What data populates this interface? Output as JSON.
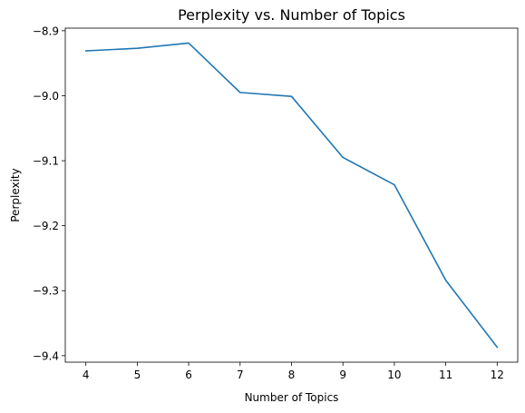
{
  "chart_data": {
    "type": "line",
    "title": "Perplexity vs. Number of Topics",
    "xlabel": "Number of Topics",
    "ylabel": "Perplexity",
    "x": [
      4,
      5,
      6,
      7,
      8,
      9,
      10,
      11,
      12
    ],
    "series": [
      {
        "values": [
          -8.931,
          -8.927,
          -8.919,
          -8.995,
          -9.001,
          -9.095,
          -9.137,
          -9.284,
          -9.387
        ]
      }
    ],
    "xlim": [
      3.6,
      12.4
    ],
    "ylim": [
      -9.41,
      -8.896
    ],
    "xticks": [
      4,
      5,
      6,
      7,
      8,
      9,
      10,
      11,
      12
    ],
    "yticks": [
      -8.9,
      -9.0,
      -9.1,
      -9.2,
      -9.3,
      -9.4
    ],
    "ytick_labels": [
      "−8.9",
      "−9.0",
      "−9.1",
      "−9.2",
      "−9.3",
      "−9.4"
    ],
    "grid": false,
    "colors": {
      "line": "#1f77b4",
      "axes": "#000000"
    }
  }
}
